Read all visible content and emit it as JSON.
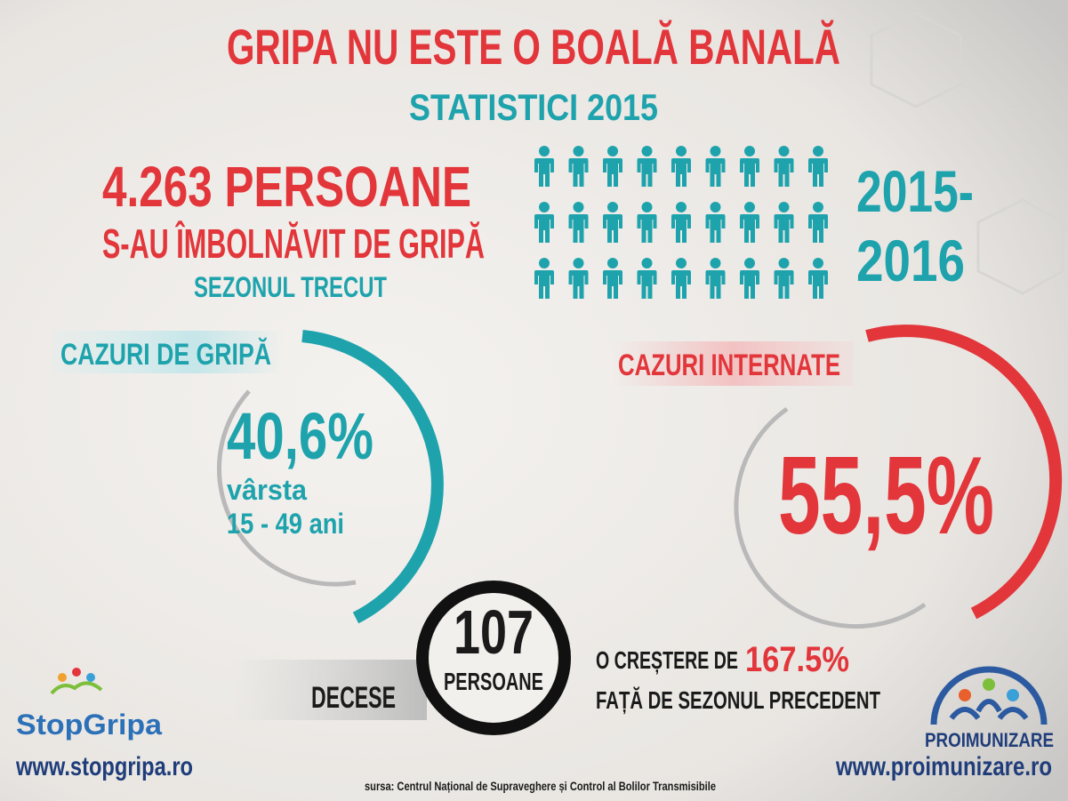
{
  "header": {
    "title": "GRIPA NU ESTE O BOALĂ BANALĂ",
    "subtitle": "STATISTICI 2015"
  },
  "sick": {
    "count": "4.263 PERSOANE",
    "text": "S-AU ÎMBOLNĂVIT DE GRIPĂ",
    "period": "SEZONUL TRECUT",
    "season": [
      "2015-",
      "2016"
    ]
  },
  "flu_cases": {
    "label": "CAZURI DE GRIPĂ",
    "percent": "40,6%",
    "age_label": "vârsta",
    "age_range": "15 - 49 ani"
  },
  "hospitalized": {
    "label": "CAZURI INTERNATE",
    "percent": "55,5%"
  },
  "deaths": {
    "number": "107",
    "unit": "PERSOANE",
    "label": "DECESE",
    "increase_prefix": "O CREȘTERE DE",
    "increase": "167.5%",
    "increase_suffix": "FAȚĂ DE SEZONUL PRECEDENT"
  },
  "logos": {
    "left_name": "StopGripa",
    "left_url": "www.stopgripa.ro",
    "right_name": "PROIMUNIZARE",
    "right_url": "www.proimunizare.ro"
  },
  "source": "sursa: Centrul Național de Supraveghere și Control al Bolilor Transmisibile"
}
